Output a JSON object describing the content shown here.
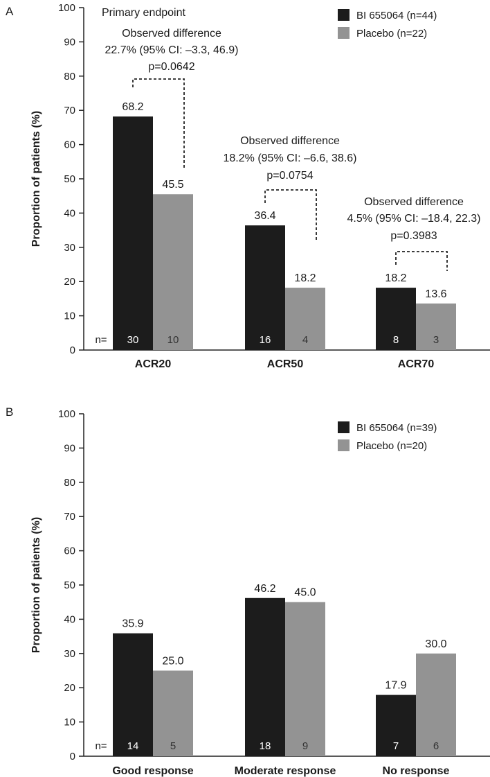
{
  "chart_data": [
    {
      "type": "bar",
      "panel": "A",
      "ylabel": "Proportion of patients (%)",
      "ylim": [
        0,
        100
      ],
      "yticks": [
        0,
        10,
        20,
        30,
        40,
        50,
        60,
        70,
        80,
        90,
        100
      ],
      "categories": [
        "ACR20",
        "ACR50",
        "ACR70"
      ],
      "series": [
        {
          "name": "BI 655064 (n=44)",
          "color": "#1c1c1c",
          "values": [
            68.2,
            36.4,
            18.2
          ],
          "value_labels": [
            "68.2",
            "36.4",
            "18.2"
          ],
          "n": [
            "30",
            "16",
            "8"
          ]
        },
        {
          "name": "Placebo (n=22)",
          "color": "#939393",
          "values": [
            45.5,
            18.2,
            13.6
          ],
          "value_labels": [
            "45.5",
            "18.2",
            "13.6"
          ],
          "n": [
            "10",
            "4",
            "3"
          ]
        }
      ],
      "n_prefix": "n=",
      "header_note": "Primary endpoint",
      "annotations": [
        {
          "lines": [
            "Observed difference",
            "22.7% (95% CI: –3.3, 46.9)",
            "p=0.0642"
          ]
        },
        {
          "lines": [
            "Observed difference",
            "18.2% (95% CI: –6.6, 38.6)",
            "p=0.0754"
          ]
        },
        {
          "lines": [
            "Observed difference",
            "4.5% (95% CI: –18.4, 22.3)",
            "p=0.3983"
          ]
        }
      ],
      "legend_position": "top-right"
    },
    {
      "type": "bar",
      "panel": "B",
      "ylabel": "Proportion of patients (%)",
      "ylim": [
        0,
        100
      ],
      "yticks": [
        0,
        10,
        20,
        30,
        40,
        50,
        60,
        70,
        80,
        90,
        100
      ],
      "categories": [
        "Good response",
        "Moderate response",
        "No response"
      ],
      "series": [
        {
          "name": "BI 655064 (n=39)",
          "color": "#1c1c1c",
          "values": [
            35.9,
            46.2,
            17.9
          ],
          "value_labels": [
            "35.9",
            "46.2",
            "17.9"
          ],
          "n": [
            "14",
            "18",
            "7"
          ]
        },
        {
          "name": "Placebo (n=20)",
          "color": "#939393",
          "values": [
            25.0,
            45.0,
            30.0
          ],
          "value_labels": [
            "25.0",
            "45.0",
            "30.0"
          ],
          "n": [
            "5",
            "9",
            "6"
          ]
        }
      ],
      "n_prefix": "n=",
      "legend_position": "top-right"
    }
  ]
}
